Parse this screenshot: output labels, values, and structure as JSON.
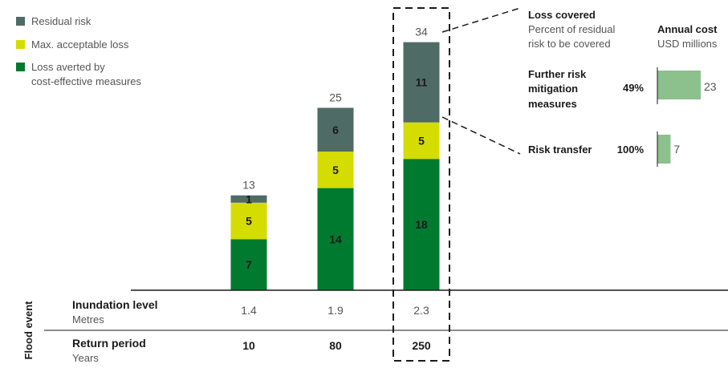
{
  "chart_data": {
    "type": "bar",
    "stacked": true,
    "legend": {
      "position": "top-left",
      "entries": [
        {
          "key": "residual",
          "label": "Residual risk",
          "color": "#4f6b66"
        },
        {
          "key": "max_loss",
          "label": "Max. acceptable loss",
          "color": "#d4dc00"
        },
        {
          "key": "averted",
          "label_lines": [
            "Loss averted by",
            "cost-effective measures"
          ],
          "color": "#007a2f"
        }
      ]
    },
    "categories": [
      "10",
      "80",
      "250"
    ],
    "series": [
      {
        "name": "Loss averted by cost-effective measures",
        "key": "averted",
        "color": "#007a2f",
        "values": [
          7,
          14,
          18
        ]
      },
      {
        "name": "Max. acceptable loss",
        "key": "max_loss",
        "color": "#d4dc00",
        "values": [
          5,
          5,
          5
        ]
      },
      {
        "name": "Residual risk",
        "key": "residual",
        "color": "#4f6b66",
        "values": [
          1,
          6,
          11
        ]
      }
    ],
    "totals": [
      "13",
      "25",
      "34"
    ],
    "highlighted_category_index": 2,
    "table": {
      "side_label": "Flood event",
      "rows": [
        {
          "title": "Inundation level",
          "subtitle": "Metres",
          "values": [
            "1.4",
            "1.9",
            "2.3"
          ],
          "bold_values": false
        },
        {
          "title": "Return period",
          "subtitle": "Years",
          "values": [
            "10",
            "80",
            "250"
          ],
          "bold_values": true
        }
      ]
    },
    "breakdown": {
      "coverage_header": {
        "title": "Loss covered",
        "subtitle_lines": [
          "Percent of residual",
          "risk to be covered"
        ]
      },
      "cost_header": {
        "title": "Annual cost",
        "subtitle": "USD millions"
      },
      "cost_color": "#8cc08c",
      "cost_max": 23,
      "items": [
        {
          "label_lines": [
            "Further risk",
            "mitigation",
            "measures"
          ],
          "percent": "49%",
          "cost": 23
        },
        {
          "label_lines": [
            "Risk transfer"
          ],
          "percent": "100%",
          "cost": 7
        }
      ]
    }
  }
}
